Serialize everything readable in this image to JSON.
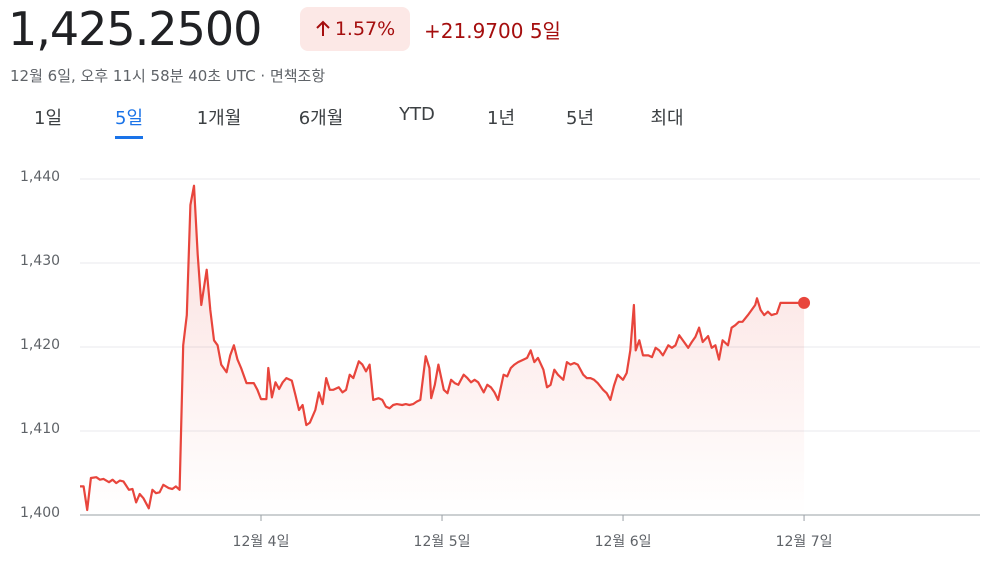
{
  "header": {
    "price": "1,425.2500",
    "change_pct": "1.57%",
    "change_abs": "+21.9700",
    "period": "5일",
    "timestamp": "12월 6일, 오후 11시 58분 40초 UTC",
    "separator": "·",
    "disclaimer": "면책조항"
  },
  "tabs": [
    "1일",
    "5일",
    "1개월",
    "6개월",
    "YTD",
    "1년",
    "5년",
    "최대"
  ],
  "selected_tab": 1,
  "chart_data": {
    "type": "line",
    "color": "#e8453c",
    "grid": true,
    "xlim": [
      3,
      7.972
    ],
    "ylim": [
      1400,
      1440
    ],
    "xticks": [
      {
        "value": 4,
        "label": "12월 4일"
      },
      {
        "value": 5,
        "label": "12월 5일"
      },
      {
        "value": 6,
        "label": "12월 6일"
      },
      {
        "value": 7,
        "label": "12월 7일"
      }
    ],
    "yticks": [
      {
        "value": 1400,
        "label": "1,400"
      },
      {
        "value": 1410,
        "label": "1,410"
      },
      {
        "value": 1420,
        "label": "1,420"
      },
      {
        "value": 1430,
        "label": "1,430"
      },
      {
        "value": 1440,
        "label": "1,440"
      }
    ],
    "x": [
      3.0,
      3.02,
      3.04,
      3.06,
      3.09,
      3.11,
      3.13,
      3.16,
      3.18,
      3.2,
      3.22,
      3.24,
      3.27,
      3.29,
      3.31,
      3.33,
      3.35,
      3.38,
      3.4,
      3.42,
      3.44,
      3.46,
      3.49,
      3.51,
      3.53,
      3.55,
      3.57,
      3.59,
      3.61,
      3.63,
      3.65,
      3.67,
      3.7,
      3.72,
      3.74,
      3.76,
      3.78,
      3.81,
      3.83,
      3.85,
      3.87,
      3.89,
      3.92,
      3.94,
      3.96,
      3.98,
      4.0,
      4.03,
      4.04,
      4.06,
      4.08,
      4.1,
      4.12,
      4.14,
      4.17,
      4.19,
      4.21,
      4.23,
      4.25,
      4.27,
      4.3,
      4.32,
      4.34,
      4.36,
      4.38,
      4.4,
      4.43,
      4.45,
      4.47,
      4.49,
      4.51,
      4.54,
      4.56,
      4.58,
      4.6,
      4.62,
      4.65,
      4.67,
      4.69,
      4.71,
      4.73,
      4.75,
      4.78,
      4.8,
      4.82,
      4.84,
      4.86,
      4.88,
      4.91,
      4.93,
      4.94,
      4.96,
      4.98,
      5.01,
      5.03,
      5.05,
      5.07,
      5.09,
      5.12,
      5.14,
      5.16,
      5.18,
      5.2,
      5.23,
      5.25,
      5.27,
      5.29,
      5.31,
      5.34,
      5.36,
      5.38,
      5.4,
      5.42,
      5.45,
      5.47,
      5.49,
      5.51,
      5.53,
      5.56,
      5.58,
      5.6,
      5.62,
      5.64,
      5.67,
      5.69,
      5.71,
      5.73,
      5.75,
      5.78,
      5.8,
      5.82,
      5.84,
      5.86,
      5.89,
      5.91,
      5.93,
      5.95,
      5.97,
      6.0,
      6.02,
      6.04,
      6.06,
      6.07,
      6.09,
      6.11,
      6.14,
      6.16,
      6.18,
      6.2,
      6.22,
      6.25,
      6.27,
      6.29,
      6.31,
      6.33,
      6.36,
      6.38,
      6.4,
      6.42,
      6.44,
      6.47,
      6.49,
      6.51,
      6.53,
      6.55,
      6.58,
      6.6,
      6.62,
      6.64,
      6.66,
      6.69,
      6.71,
      6.73,
      6.74,
      6.76,
      6.78,
      6.8,
      6.82,
      6.85,
      6.87,
      7.0
    ],
    "values": [
      1403.4,
      1403.4,
      1400.6,
      1404.4,
      1404.5,
      1404.2,
      1404.3,
      1403.9,
      1404.2,
      1403.8,
      1404.1,
      1404.0,
      1403.0,
      1403.1,
      1401.5,
      1402.5,
      1402.0,
      1400.8,
      1403.0,
      1402.6,
      1402.7,
      1403.6,
      1403.2,
      1403.1,
      1403.4,
      1403.0,
      1420.2,
      1423.8,
      1436.9,
      1439.2,
      1431.0,
      1425.0,
      1429.2,
      1424.4,
      1420.8,
      1420.2,
      1417.9,
      1417.0,
      1419.0,
      1420.2,
      1418.5,
      1417.5,
      1415.7,
      1415.7,
      1415.7,
      1414.9,
      1413.8,
      1413.8,
      1417.5,
      1414.0,
      1415.8,
      1415.0,
      1415.8,
      1416.3,
      1416.0,
      1414.3,
      1412.5,
      1413.1,
      1410.7,
      1411.0,
      1412.5,
      1414.6,
      1413.2,
      1416.3,
      1414.9,
      1414.9,
      1415.2,
      1414.6,
      1414.9,
      1416.7,
      1416.3,
      1418.3,
      1417.9,
      1417.1,
      1417.9,
      1413.7,
      1413.9,
      1413.7,
      1412.9,
      1412.7,
      1413.1,
      1413.2,
      1413.1,
      1413.2,
      1413.1,
      1413.2,
      1413.5,
      1413.7,
      1418.9,
      1417.5,
      1413.9,
      1415.5,
      1417.9,
      1414.9,
      1414.5,
      1416.1,
      1415.7,
      1415.5,
      1416.7,
      1416.3,
      1415.8,
      1416.1,
      1415.8,
      1414.6,
      1415.5,
      1415.2,
      1414.6,
      1413.7,
      1416.7,
      1416.5,
      1417.5,
      1417.9,
      1418.2,
      1418.5,
      1418.7,
      1419.6,
      1418.2,
      1418.7,
      1417.3,
      1415.2,
      1415.5,
      1417.3,
      1416.7,
      1416.1,
      1418.2,
      1417.9,
      1418.1,
      1417.9,
      1416.7,
      1416.3,
      1416.3,
      1416.1,
      1415.7,
      1414.9,
      1414.5,
      1413.7,
      1415.4,
      1416.7,
      1416.1,
      1416.9,
      1419.6,
      1425.0,
      1419.6,
      1420.8,
      1419.0,
      1419.0,
      1418.8,
      1419.9,
      1419.6,
      1419.0,
      1420.2,
      1419.9,
      1420.2,
      1421.4,
      1420.8,
      1419.9,
      1420.6,
      1421.2,
      1422.3,
      1420.6,
      1421.3,
      1419.9,
      1420.2,
      1418.5,
      1420.8,
      1420.2,
      1422.3,
      1422.6,
      1423.0,
      1423.0,
      1423.8,
      1424.4,
      1425.0,
      1425.8,
      1424.4,
      1423.8,
      1424.2,
      1423.8,
      1424.0,
      1425.25,
      1425.25
    ]
  }
}
